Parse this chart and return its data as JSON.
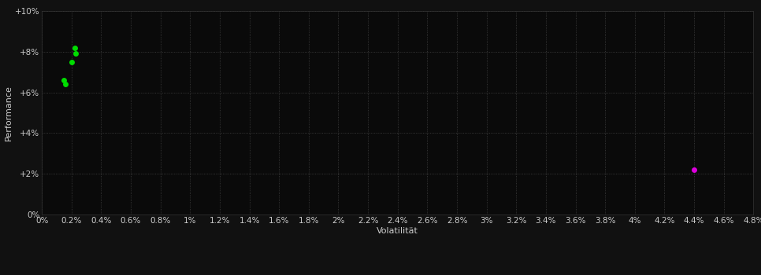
{
  "background_color": "#111111",
  "plot_bg_color": "#0a0a0a",
  "grid_color": "#444444",
  "text_color": "#cccccc",
  "green_points": [
    [
      0.0022,
      0.082
    ],
    [
      0.0023,
      0.079
    ],
    [
      0.002,
      0.075
    ],
    [
      0.0015,
      0.066
    ],
    [
      0.0016,
      0.064
    ]
  ],
  "magenta_point": [
    0.044,
    0.022
  ],
  "green_color": "#00dd00",
  "magenta_color": "#dd00dd",
  "xlabel": "Volatilität",
  "ylabel": "Performance",
  "xlim": [
    0,
    0.048
  ],
  "ylim": [
    0,
    0.1
  ],
  "xticks": [
    0,
    0.002,
    0.004,
    0.006,
    0.008,
    0.01,
    0.012,
    0.014,
    0.016,
    0.018,
    0.02,
    0.022,
    0.024,
    0.026,
    0.028,
    0.03,
    0.032,
    0.034,
    0.036,
    0.038,
    0.04,
    0.042,
    0.044,
    0.046,
    0.048
  ],
  "xtick_labels": [
    "0%",
    "0.2%",
    "0.4%",
    "0.6%",
    "0.8%",
    "1%",
    "1.2%",
    "1.4%",
    "1.6%",
    "1.8%",
    "2%",
    "2.2%",
    "2.4%",
    "2.6%",
    "2.8%",
    "3%",
    "3.2%",
    "3.4%",
    "3.6%",
    "3.8%",
    "4%",
    "4.2%",
    "4.4%",
    "4.6%",
    "4.8%"
  ],
  "yticks": [
    0,
    0.02,
    0.04,
    0.06,
    0.08,
    0.1
  ],
  "ytick_labels": [
    "0%",
    "+2%",
    "+4%",
    "+6%",
    "+8%",
    "+10%"
  ],
  "point_size": 25,
  "font_size": 7.5
}
